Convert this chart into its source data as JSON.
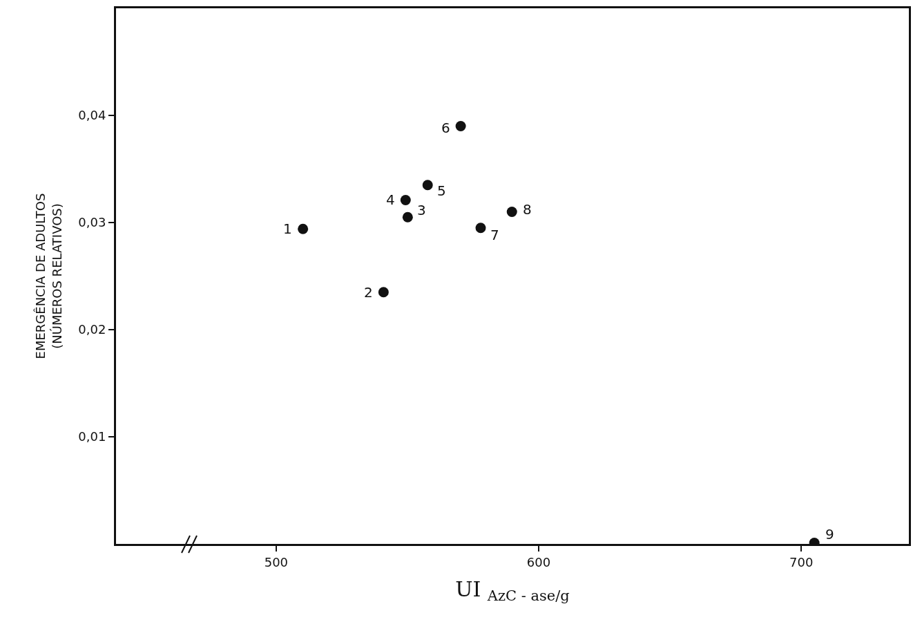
{
  "chart_data": {
    "type": "scatter",
    "xlabel": "UI $_{AzC - ase/g}$",
    "ylabel": "EMERGÊNCIA DE ADULTOS\n(NÚMEROS RELATIVOS)",
    "x": [
      510.2,
      540.9,
      550.1,
      549.3,
      557.7,
      570.3,
      577.9,
      589.8,
      705
    ],
    "values": [
      0.0294,
      0.0235,
      0.0305,
      0.0321,
      0.0335,
      0.039,
      0.0295,
      0.031,
      0.0001
    ],
    "color": "#111111",
    "marker": "circle",
    "grid": false,
    "xlim": [
      439,
      741
    ],
    "xticks": [
      500,
      600,
      700
    ],
    "ylim": [
      0,
      0.05
    ],
    "yticks": [
      {
        "value": 0.01,
        "label": "0,01"
      },
      {
        "value": 0.02,
        "label": "0,02"
      },
      {
        "value": 0.03,
        "label": "0,03"
      },
      {
        "value": 0.04,
        "label": "0,04"
      }
    ],
    "annotations": [
      {
        "text": "1",
        "x": 510.2,
        "y": 0.0294
      },
      {
        "text": "2",
        "x": 540.9,
        "y": 0.0235
      },
      {
        "text": "3",
        "x": 550.1,
        "y": 0.0305
      },
      {
        "text": "4",
        "x": 549.3,
        "y": 0.0321
      },
      {
        "text": "5",
        "x": 557.7,
        "y": 0.0335
      },
      {
        "text": "6",
        "x": 570.3,
        "y": 0.039
      },
      {
        "text": "7",
        "x": 577.9,
        "y": 0.0295
      },
      {
        "text": "8",
        "x": 589.8,
        "y": 0.031
      },
      {
        "text": "9",
        "x": 705,
        "y": 0.0001
      }
    ]
  }
}
